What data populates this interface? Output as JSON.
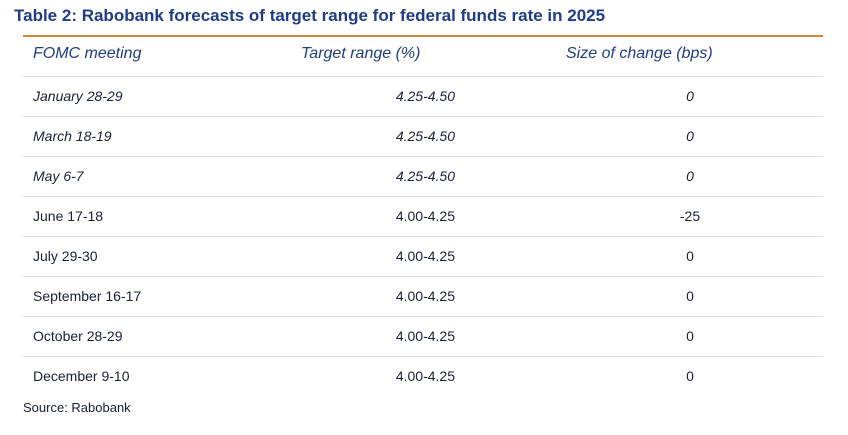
{
  "title": "Table 2: Rabobank forecasts of target range for federal funds rate in 2025",
  "headers": [
    "FOMC meeting",
    "Target range (%)",
    "Size of change (bps)"
  ],
  "rows": [
    {
      "meeting": "January 28-29",
      "range": "4.25-4.50",
      "change": "0",
      "italic": true
    },
    {
      "meeting": "March 18-19",
      "range": "4.25-4.50",
      "change": "0",
      "italic": true
    },
    {
      "meeting": "May 6-7",
      "range": "4.25-4.50",
      "change": "0",
      "italic": true
    },
    {
      "meeting": "June 17-18",
      "range": "4.00-4.25",
      "change": "-25",
      "italic": false
    },
    {
      "meeting": "July 29-30",
      "range": "4.00-4.25",
      "change": "0",
      "italic": false
    },
    {
      "meeting": "September 16-17",
      "range": "4.00-4.25",
      "change": "0",
      "italic": false
    },
    {
      "meeting": "October 28-29",
      "range": "4.00-4.25",
      "change": "0",
      "italic": false
    },
    {
      "meeting": "December 9-10",
      "range": "4.00-4.25",
      "change": "0",
      "italic": false
    }
  ],
  "source": "Source: Rabobank",
  "colors": {
    "title": "#1f3c88",
    "top_rule": "#c8893a",
    "row_rule": "#d9dde6",
    "text": "#1a1f3a"
  }
}
